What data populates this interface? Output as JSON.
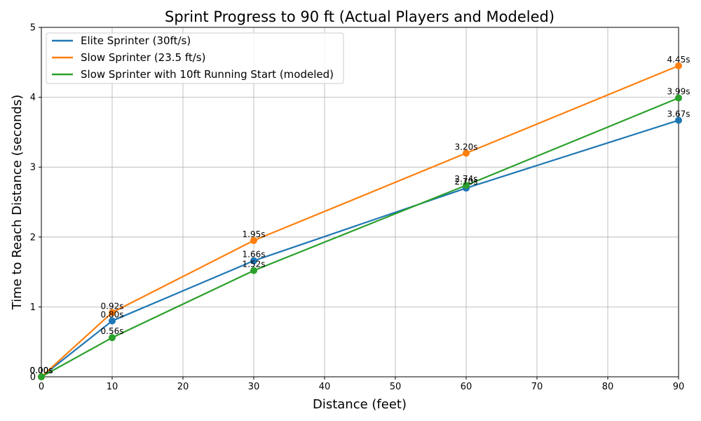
{
  "chart_data": {
    "type": "line",
    "title": "Sprint Progress to 90 ft (Actual Players and Modeled)",
    "xlabel": "Distance (feet)",
    "ylabel": "Time to Reach Distance (seconds)",
    "xlim": [
      0,
      90
    ],
    "ylim": [
      0,
      5
    ],
    "xticks": [
      0,
      10,
      20,
      30,
      40,
      50,
      60,
      70,
      80,
      90
    ],
    "yticks": [
      0,
      1,
      2,
      3,
      4,
      5
    ],
    "x": [
      0,
      10,
      30,
      60,
      90
    ],
    "grid": true,
    "legend_position": "upper-left",
    "series": [
      {
        "name": "Elite Sprinter (30ft/s)",
        "color": "#1f77b4",
        "values": [
          0.0,
          0.8,
          1.66,
          2.7,
          3.67
        ],
        "labels": [
          "0.00s",
          "0.80s",
          "1.66s",
          "2.70s",
          "3.67s"
        ]
      },
      {
        "name": "Slow Sprinter (23.5 ft/s)",
        "color": "#ff7f0e",
        "values": [
          0.0,
          0.92,
          1.95,
          3.2,
          4.45
        ],
        "labels": [
          "0.00s",
          "0.92s",
          "1.95s",
          "3.20s",
          "4.45s"
        ]
      },
      {
        "name": "Slow Sprinter with 10ft Running Start (modeled)",
        "color": "#2ca02c",
        "values": [
          0.0,
          0.56,
          1.52,
          2.74,
          3.99
        ],
        "labels": [
          "0.00s",
          "0.56s",
          "1.52s",
          "2.74s",
          "3.99s"
        ]
      }
    ]
  }
}
